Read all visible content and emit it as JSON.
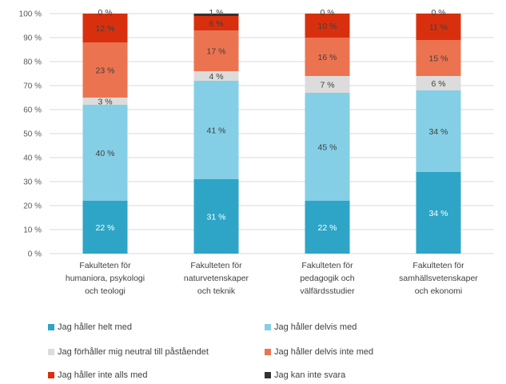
{
  "chart_data": {
    "type": "bar",
    "stacked": true,
    "ylim": [
      0,
      100
    ],
    "yticks": [
      "0 %",
      "10 %",
      "20 %",
      "30 %",
      "40 %",
      "50 %",
      "60 %",
      "70 %",
      "80 %",
      "90 %",
      "100 %"
    ],
    "grid": true,
    "legend_position": "bottom",
    "categories": [
      [
        "Fakulteten för",
        "humaniora, psykologi",
        "och teologi"
      ],
      [
        "Fakulteten för",
        "naturvetenskaper",
        "och teknik"
      ],
      [
        "Fakulteten för",
        "pedagogik och",
        "välfärdsstudier"
      ],
      [
        "Fakulteten för",
        "samhällsvetenskaper",
        "och ekonomi"
      ]
    ],
    "series": [
      {
        "name": "Jag håller helt med",
        "color": "#2ea5c6",
        "values": [
          22,
          31,
          22,
          34
        ],
        "labels": [
          "22 %",
          "31 %",
          "22 %",
          "34 %"
        ],
        "label_color": "#ffffff"
      },
      {
        "name": "Jag håller delvis med",
        "color": "#84cfe6",
        "values": [
          40,
          41,
          45,
          34
        ],
        "labels": [
          "40 %",
          "41 %",
          "45 %",
          "34 %"
        ],
        "label_color": "#404040"
      },
      {
        "name": "Jag förhåller mig neutral till påståendet",
        "color": "#dcdcdc",
        "values": [
          3,
          4,
          7,
          6
        ],
        "labels": [
          "3 %",
          "4 %",
          "7 %",
          "6 %"
        ],
        "label_color": "#404040"
      },
      {
        "name": "Jag håller delvis inte med",
        "color": "#ec7350",
        "values": [
          23,
          17,
          16,
          15
        ],
        "labels": [
          "23 %",
          "17 %",
          "16 %",
          "15 %"
        ],
        "label_color": "#404040"
      },
      {
        "name": "Jag håller inte alls med",
        "color": "#d8300f",
        "values": [
          12,
          6,
          10,
          11
        ],
        "labels": [
          "12 %",
          "6 %",
          "10 %",
          "11 %"
        ],
        "label_color": "#404040"
      },
      {
        "name": "Jag kan inte svara",
        "color": "#333333",
        "values": [
          0,
          1,
          0,
          0
        ],
        "labels": [
          "0 %",
          "1 %",
          "0 %",
          "0 %"
        ],
        "label_color": "#404040"
      }
    ]
  }
}
